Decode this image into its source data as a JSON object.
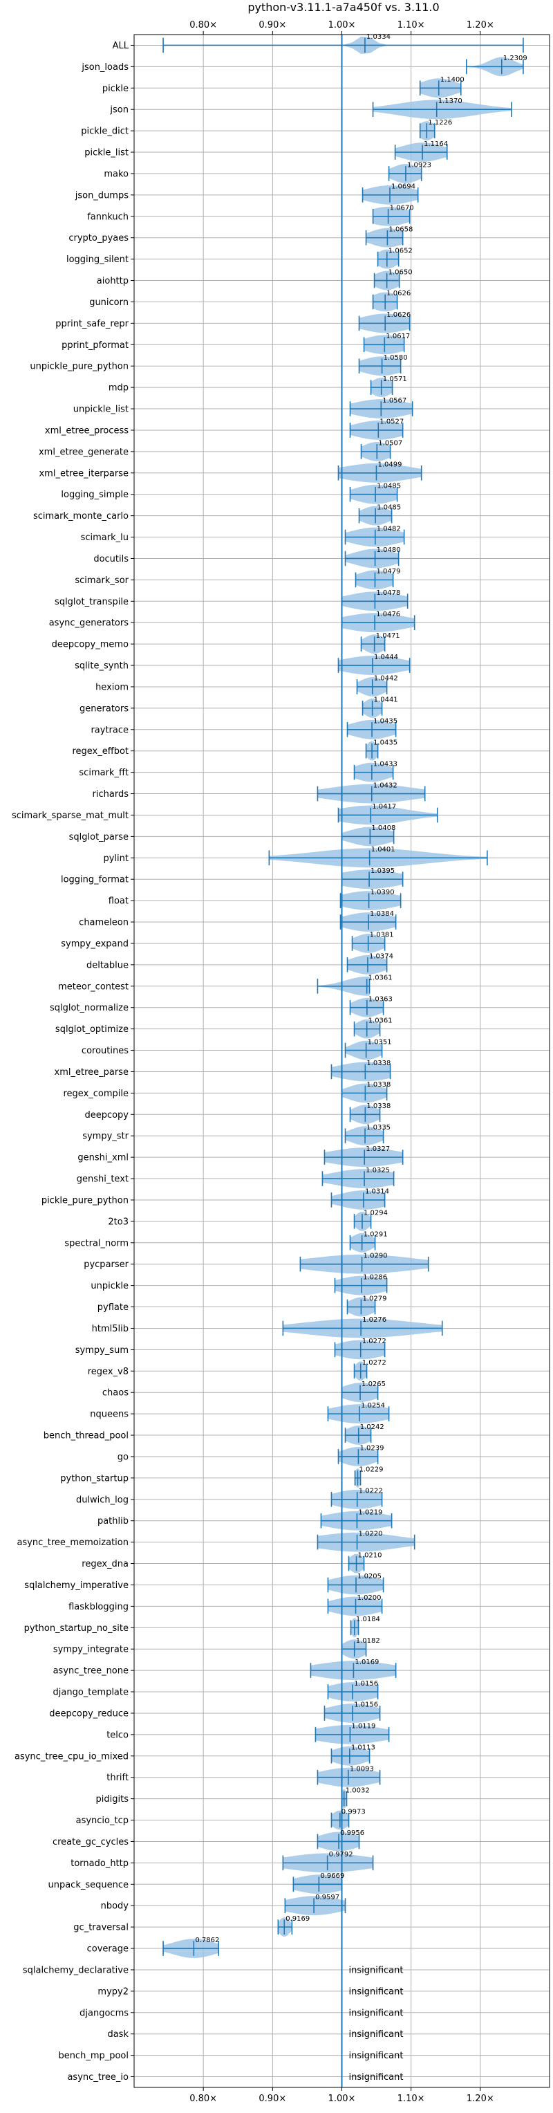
{
  "chart_data": {
    "type": "violin",
    "title": "python-v3.11.1-a7a450f vs. 3.11.0",
    "xlabel": "",
    "ylabel": "",
    "x_ticks": [
      "0.80×",
      "0.90×",
      "1.00×",
      "1.10×",
      "1.20×"
    ],
    "x_tick_values": [
      0.8,
      0.9,
      1.0,
      1.1,
      1.2
    ],
    "xlim": [
      0.7,
      1.3
    ],
    "reference_line": 1.0,
    "grid": true,
    "colors": {
      "violin": "#9ec5e8",
      "whisker": "#1f77b4",
      "reference": "#1f77b4",
      "grid": "#b0b0b0"
    },
    "insignificant_text": "insignificant",
    "benchmarks": [
      {
        "name": "ALL",
        "value": 1.0334,
        "label": "1.0334",
        "low": 0.742,
        "high": 1.262,
        "spread": 0.012
      },
      {
        "name": "json_loads",
        "value": 1.2309,
        "label": "1.2309",
        "low": 1.18,
        "high": 1.262,
        "spread": 0.018
      },
      {
        "name": "pickle",
        "value": 1.14,
        "label": "1.1400",
        "low": 1.113,
        "high": 1.172,
        "spread": 0.025
      },
      {
        "name": "json",
        "value": 1.137,
        "label": "1.1370",
        "low": 1.045,
        "high": 1.245,
        "spread": 0.055
      },
      {
        "name": "pickle_dict",
        "value": 1.1226,
        "label": "1.1226",
        "low": 1.113,
        "high": 1.134,
        "spread": 0.012
      },
      {
        "name": "pickle_list",
        "value": 1.1164,
        "label": "1.1164",
        "low": 1.077,
        "high": 1.152,
        "spread": 0.03
      },
      {
        "name": "mako",
        "value": 1.0923,
        "label": "1.0923",
        "low": 1.068,
        "high": 1.115,
        "spread": 0.02
      },
      {
        "name": "json_dumps",
        "value": 1.0694,
        "label": "1.0694",
        "low": 1.03,
        "high": 1.11,
        "spread": 0.035
      },
      {
        "name": "fannkuch",
        "value": 1.067,
        "label": "1.0670",
        "low": 1.045,
        "high": 1.098,
        "spread": 0.03
      },
      {
        "name": "crypto_pyaes",
        "value": 1.0658,
        "label": "1.0658",
        "low": 1.035,
        "high": 1.088,
        "spread": 0.025
      },
      {
        "name": "logging_silent",
        "value": 1.0652,
        "label": "1.0652",
        "low": 1.052,
        "high": 1.082,
        "spread": 0.015
      },
      {
        "name": "aiohttp",
        "value": 1.065,
        "label": "1.0650",
        "low": 1.047,
        "high": 1.083,
        "spread": 0.018
      },
      {
        "name": "gunicorn",
        "value": 1.0626,
        "label": "1.0626",
        "low": 1.045,
        "high": 1.08,
        "spread": 0.02
      },
      {
        "name": "pprint_safe_repr",
        "value": 1.0626,
        "label": "1.0626",
        "low": 1.025,
        "high": 1.098,
        "spread": 0.035
      },
      {
        "name": "pprint_pformat",
        "value": 1.0617,
        "label": "1.0617",
        "low": 1.032,
        "high": 1.09,
        "spread": 0.03
      },
      {
        "name": "unpickle_pure_python",
        "value": 1.058,
        "label": "1.0580",
        "low": 1.025,
        "high": 1.085,
        "spread": 0.03
      },
      {
        "name": "mdp",
        "value": 1.0571,
        "label": "1.0571",
        "low": 1.042,
        "high": 1.073,
        "spread": 0.015
      },
      {
        "name": "unpickle_list",
        "value": 1.0567,
        "label": "1.0567",
        "low": 1.012,
        "high": 1.102,
        "spread": 0.04
      },
      {
        "name": "xml_etree_process",
        "value": 1.0527,
        "label": "1.0527",
        "low": 1.012,
        "high": 1.088,
        "spread": 0.035
      },
      {
        "name": "xml_etree_generate",
        "value": 1.0507,
        "label": "1.0507",
        "low": 1.028,
        "high": 1.07,
        "spread": 0.02
      },
      {
        "name": "xml_etree_iterparse",
        "value": 1.0499,
        "label": "1.0499",
        "low": 0.995,
        "high": 1.115,
        "spread": 0.05
      },
      {
        "name": "logging_simple",
        "value": 1.0485,
        "label": "1.0485",
        "low": 1.012,
        "high": 1.08,
        "spread": 0.03
      },
      {
        "name": "scimark_monte_carlo",
        "value": 1.0485,
        "label": "1.0485",
        "low": 1.025,
        "high": 1.072,
        "spread": 0.02
      },
      {
        "name": "scimark_lu",
        "value": 1.0482,
        "label": "1.0482",
        "low": 1.005,
        "high": 1.09,
        "spread": 0.035
      },
      {
        "name": "docutils",
        "value": 1.048,
        "label": "1.0480",
        "low": 1.005,
        "high": 1.082,
        "spread": 0.03
      },
      {
        "name": "scimark_sor",
        "value": 1.0479,
        "label": "1.0479",
        "low": 1.02,
        "high": 1.074,
        "spread": 0.025
      },
      {
        "name": "sqlglot_transpile",
        "value": 1.0478,
        "label": "1.0478",
        "low": 1.0,
        "high": 1.095,
        "spread": 0.04
      },
      {
        "name": "async_generators",
        "value": 1.0476,
        "label": "1.0476",
        "low": 1.0,
        "high": 1.105,
        "spread": 0.045
      },
      {
        "name": "deepcopy_memo",
        "value": 1.0471,
        "label": "1.0471",
        "low": 1.028,
        "high": 1.062,
        "spread": 0.015
      },
      {
        "name": "sqlite_synth",
        "value": 1.0444,
        "label": "1.0444",
        "low": 0.995,
        "high": 1.098,
        "spread": 0.045
      },
      {
        "name": "hexiom",
        "value": 1.0442,
        "label": "1.0442",
        "low": 1.022,
        "high": 1.065,
        "spread": 0.018
      },
      {
        "name": "generators",
        "value": 1.0441,
        "label": "1.0441",
        "low": 1.03,
        "high": 1.058,
        "spread": 0.012
      },
      {
        "name": "raytrace",
        "value": 1.0435,
        "label": "1.0435",
        "low": 1.008,
        "high": 1.078,
        "spread": 0.03
      },
      {
        "name": "regex_effbot",
        "value": 1.0435,
        "label": "1.0435",
        "low": 1.035,
        "high": 1.052,
        "spread": 0.008
      },
      {
        "name": "scimark_fft",
        "value": 1.0433,
        "label": "1.0433",
        "low": 1.018,
        "high": 1.074,
        "spread": 0.025
      },
      {
        "name": "richards",
        "value": 1.0432,
        "label": "1.0432",
        "low": 0.965,
        "high": 1.12,
        "spread": 0.06
      },
      {
        "name": "scimark_sparse_mat_mult",
        "value": 1.0417,
        "label": "1.0417",
        "low": 0.995,
        "high": 1.138,
        "spread": 0.05
      },
      {
        "name": "sqlglot_parse",
        "value": 1.0408,
        "label": "1.0408",
        "low": 1.0,
        "high": 1.075,
        "spread": 0.03
      },
      {
        "name": "pylint",
        "value": 1.0401,
        "label": "1.0401",
        "low": 0.895,
        "high": 1.21,
        "spread": 0.08
      },
      {
        "name": "logging_format",
        "value": 1.0395,
        "label": "1.0395",
        "low": 1.0,
        "high": 1.088,
        "spread": 0.045
      },
      {
        "name": "float",
        "value": 1.039,
        "label": "1.0390",
        "low": 0.998,
        "high": 1.085,
        "spread": 0.04
      },
      {
        "name": "chameleon",
        "value": 1.0384,
        "label": "1.0384",
        "low": 0.998,
        "high": 1.078,
        "spread": 0.035
      },
      {
        "name": "sympy_expand",
        "value": 1.0381,
        "label": "1.0381",
        "low": 1.015,
        "high": 1.062,
        "spread": 0.02
      },
      {
        "name": "deltablue",
        "value": 1.0374,
        "label": "1.0374",
        "low": 1.008,
        "high": 1.065,
        "spread": 0.025
      },
      {
        "name": "meteor_contest",
        "value": 1.0361,
        "label": "1.0361",
        "low": 0.965,
        "high": 1.04,
        "spread": 0.03
      },
      {
        "name": "sqlglot_normalize",
        "value": 1.0363,
        "label": "1.0363",
        "low": 1.012,
        "high": 1.06,
        "spread": 0.02
      },
      {
        "name": "sqlglot_optimize",
        "value": 1.0361,
        "label": "1.0361",
        "low": 1.018,
        "high": 1.055,
        "spread": 0.015
      },
      {
        "name": "coroutines",
        "value": 1.0351,
        "label": "1.0351",
        "low": 1.005,
        "high": 1.058,
        "spread": 0.02
      },
      {
        "name": "xml_etree_parse",
        "value": 1.0338,
        "label": "1.0338",
        "low": 0.985,
        "high": 1.07,
        "spread": 0.04
      },
      {
        "name": "regex_compile",
        "value": 1.0338,
        "label": "1.0338",
        "low": 1.0,
        "high": 1.065,
        "spread": 0.025
      },
      {
        "name": "deepcopy",
        "value": 1.0338,
        "label": "1.0338",
        "low": 1.012,
        "high": 1.055,
        "spread": 0.018
      },
      {
        "name": "sympy_str",
        "value": 1.0335,
        "label": "1.0335",
        "low": 1.005,
        "high": 1.06,
        "spread": 0.022
      },
      {
        "name": "genshi_xml",
        "value": 1.0327,
        "label": "1.0327",
        "low": 0.975,
        "high": 1.088,
        "spread": 0.05
      },
      {
        "name": "genshi_text",
        "value": 1.0325,
        "label": "1.0325",
        "low": 0.972,
        "high": 1.075,
        "spread": 0.045
      },
      {
        "name": "pickle_pure_python",
        "value": 1.0314,
        "label": "1.0314",
        "low": 0.985,
        "high": 1.062,
        "spread": 0.035
      },
      {
        "name": "2to3",
        "value": 1.0294,
        "label": "1.0294",
        "low": 1.018,
        "high": 1.042,
        "spread": 0.01
      },
      {
        "name": "spectral_norm",
        "value": 1.0291,
        "label": "1.0291",
        "low": 1.012,
        "high": 1.048,
        "spread": 0.015
      },
      {
        "name": "pycparser",
        "value": 1.029,
        "label": "1.0290",
        "low": 0.94,
        "high": 1.125,
        "spread": 0.075
      },
      {
        "name": "unpickle",
        "value": 1.0286,
        "label": "1.0286",
        "low": 0.99,
        "high": 1.065,
        "spread": 0.035
      },
      {
        "name": "pyflate",
        "value": 1.0279,
        "label": "1.0279",
        "low": 1.008,
        "high": 1.048,
        "spread": 0.018
      },
      {
        "name": "html5lib",
        "value": 1.0276,
        "label": "1.0276",
        "low": 0.915,
        "high": 1.145,
        "spread": 0.08
      },
      {
        "name": "sympy_sum",
        "value": 1.0272,
        "label": "1.0272",
        "low": 0.99,
        "high": 1.062,
        "spread": 0.035
      },
      {
        "name": "regex_v8",
        "value": 1.0272,
        "label": "1.0272",
        "low": 1.018,
        "high": 1.036,
        "spread": 0.008
      },
      {
        "name": "chaos",
        "value": 1.0265,
        "label": "1.0265",
        "low": 1.0,
        "high": 1.052,
        "spread": 0.025
      },
      {
        "name": "nqueens",
        "value": 1.0254,
        "label": "1.0254",
        "low": 0.98,
        "high": 1.068,
        "spread": 0.04
      },
      {
        "name": "bench_thread_pool",
        "value": 1.0242,
        "label": "1.0242",
        "low": 1.005,
        "high": 1.042,
        "spread": 0.018
      },
      {
        "name": "go",
        "value": 1.0239,
        "label": "1.0239",
        "low": 0.995,
        "high": 1.052,
        "spread": 0.025
      },
      {
        "name": "python_startup",
        "value": 1.0229,
        "label": "1.0229",
        "low": 1.019,
        "high": 1.027,
        "spread": 0.004
      },
      {
        "name": "dulwich_log",
        "value": 1.0222,
        "label": "1.0222",
        "low": 0.985,
        "high": 1.058,
        "spread": 0.035
      },
      {
        "name": "pathlib",
        "value": 1.0219,
        "label": "1.0219",
        "low": 0.97,
        "high": 1.072,
        "spread": 0.045
      },
      {
        "name": "async_tree_memoization",
        "value": 1.022,
        "label": "1.0220",
        "low": 0.965,
        "high": 1.105,
        "spread": 0.06
      },
      {
        "name": "regex_dna",
        "value": 1.021,
        "label": "1.0210",
        "low": 1.01,
        "high": 1.032,
        "spread": 0.01
      },
      {
        "name": "sqlalchemy_imperative",
        "value": 1.0205,
        "label": "1.0205",
        "low": 0.98,
        "high": 1.06,
        "spread": 0.035
      },
      {
        "name": "flaskblogging",
        "value": 1.02,
        "label": "1.0200",
        "low": 0.98,
        "high": 1.058,
        "spread": 0.035
      },
      {
        "name": "python_startup_no_site",
        "value": 1.0184,
        "label": "1.0184",
        "low": 1.013,
        "high": 1.024,
        "spread": 0.005
      },
      {
        "name": "sympy_integrate",
        "value": 1.0182,
        "label": "1.0182",
        "low": 1.0,
        "high": 1.035,
        "spread": 0.016
      },
      {
        "name": "async_tree_none",
        "value": 1.0169,
        "label": "1.0169",
        "low": 0.955,
        "high": 1.078,
        "spread": 0.055
      },
      {
        "name": "django_template",
        "value": 1.0156,
        "label": "1.0156",
        "low": 0.98,
        "high": 1.052,
        "spread": 0.035
      },
      {
        "name": "deepcopy_reduce",
        "value": 1.0156,
        "label": "1.0156",
        "low": 0.975,
        "high": 1.055,
        "spread": 0.035
      },
      {
        "name": "telco",
        "value": 1.0119,
        "label": "1.0119",
        "low": 0.962,
        "high": 1.068,
        "spread": 0.05
      },
      {
        "name": "async_tree_cpu_io_mixed",
        "value": 1.0113,
        "label": "1.0113",
        "low": 0.985,
        "high": 1.04,
        "spread": 0.025
      },
      {
        "name": "thrift",
        "value": 1.0093,
        "label": "1.0093",
        "low": 0.965,
        "high": 1.055,
        "spread": 0.04
      },
      {
        "name": "pidigits",
        "value": 1.0032,
        "label": "1.0032",
        "low": 1.0,
        "high": 1.007,
        "spread": 0.004
      },
      {
        "name": "asyncio_tcp",
        "value": 0.9973,
        "label": "0.9973",
        "low": 0.985,
        "high": 1.01,
        "spread": 0.012
      },
      {
        "name": "create_gc_cycles",
        "value": 0.9956,
        "label": "0.9956",
        "low": 0.965,
        "high": 1.025,
        "spread": 0.028
      },
      {
        "name": "tornado_http",
        "value": 0.9792,
        "label": "0.9792",
        "low": 0.915,
        "high": 1.045,
        "spread": 0.06
      },
      {
        "name": "unpack_sequence",
        "value": 0.9669,
        "label": "0.9669",
        "low": 0.93,
        "high": 1.0,
        "spread": 0.035
      },
      {
        "name": "nbody",
        "value": 0.9597,
        "label": "0.9597",
        "low": 0.918,
        "high": 1.005,
        "spread": 0.04
      },
      {
        "name": "gc_traversal",
        "value": 0.9169,
        "label": "0.9169",
        "low": 0.908,
        "high": 0.928,
        "spread": 0.008
      },
      {
        "name": "coverage",
        "value": 0.7862,
        "label": "0.7862",
        "low": 0.742,
        "high": 0.822,
        "spread": 0.03
      },
      {
        "name": "sqlalchemy_declarative",
        "value": null,
        "label": "insignificant",
        "insignificant": true
      },
      {
        "name": "mypy2",
        "value": null,
        "label": "insignificant",
        "insignificant": true
      },
      {
        "name": "djangocms",
        "value": null,
        "label": "insignificant",
        "insignificant": true
      },
      {
        "name": "dask",
        "value": null,
        "label": "insignificant",
        "insignificant": true
      },
      {
        "name": "bench_mp_pool",
        "value": null,
        "label": "insignificant",
        "insignificant": true
      },
      {
        "name": "async_tree_io",
        "value": null,
        "label": "insignificant",
        "insignificant": true
      }
    ]
  }
}
